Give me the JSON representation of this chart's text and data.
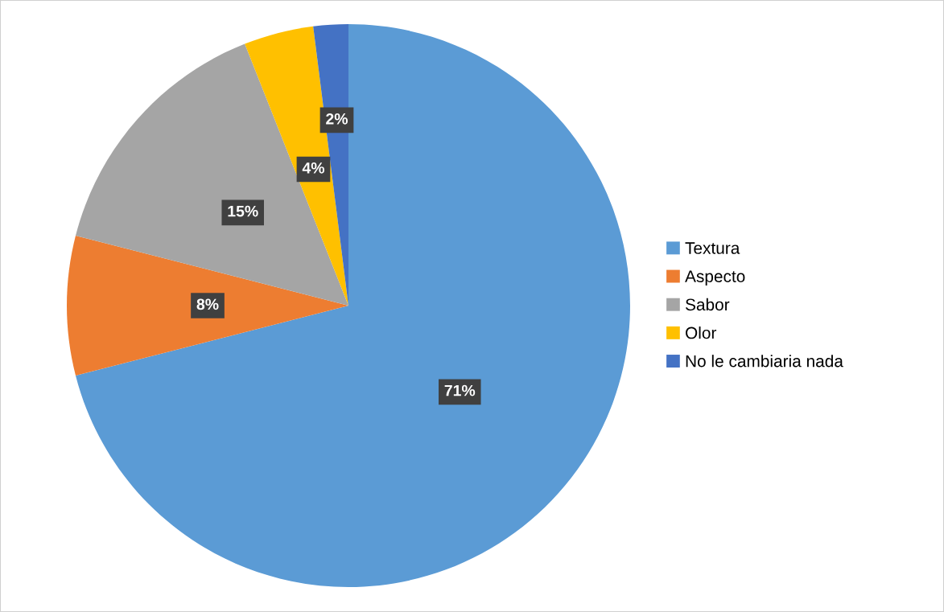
{
  "chart_data": {
    "type": "pie",
    "categories": [
      "Textura",
      "Aspecto",
      "Sabor",
      "Olor",
      "No le cambiaria nada"
    ],
    "values": [
      71,
      8,
      15,
      4,
      2
    ],
    "colors": [
      "#5b9bd5",
      "#ed7d31",
      "#a5a5a5",
      "#ffc000",
      "#4472c4"
    ],
    "value_labels": [
      "71%",
      "8%",
      "15%",
      "4%",
      "2%"
    ],
    "legend": "right"
  }
}
